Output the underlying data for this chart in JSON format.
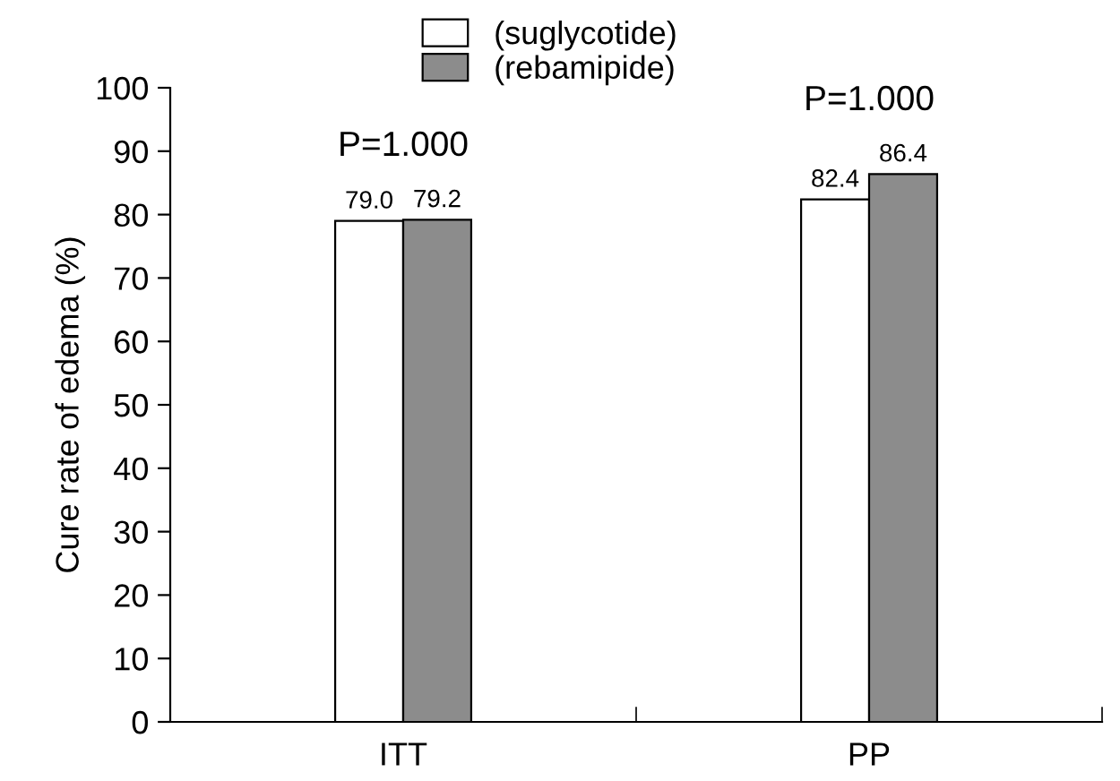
{
  "chart_data": {
    "type": "bar",
    "ylabel": "Cure rate of edema (%)",
    "categories": [
      "ITT",
      "PP"
    ],
    "series": [
      {
        "name": "(suglycotide)",
        "color": "#ffffff",
        "values": [
          79.0,
          82.4
        ],
        "value_labels": [
          "79.0",
          "82.4"
        ]
      },
      {
        "name": "(rebamipide)",
        "color": "#8c8c8c",
        "values": [
          79.2,
          86.4
        ],
        "value_labels": [
          "79.2",
          "86.4"
        ]
      }
    ],
    "ylim": [
      0,
      100
    ],
    "yticks": [
      0,
      10,
      20,
      30,
      40,
      50,
      60,
      70,
      80,
      90,
      100
    ],
    "legend": "top left",
    "grid": false,
    "annotations": [
      "P=1.000",
      "P=1.000"
    ]
  }
}
